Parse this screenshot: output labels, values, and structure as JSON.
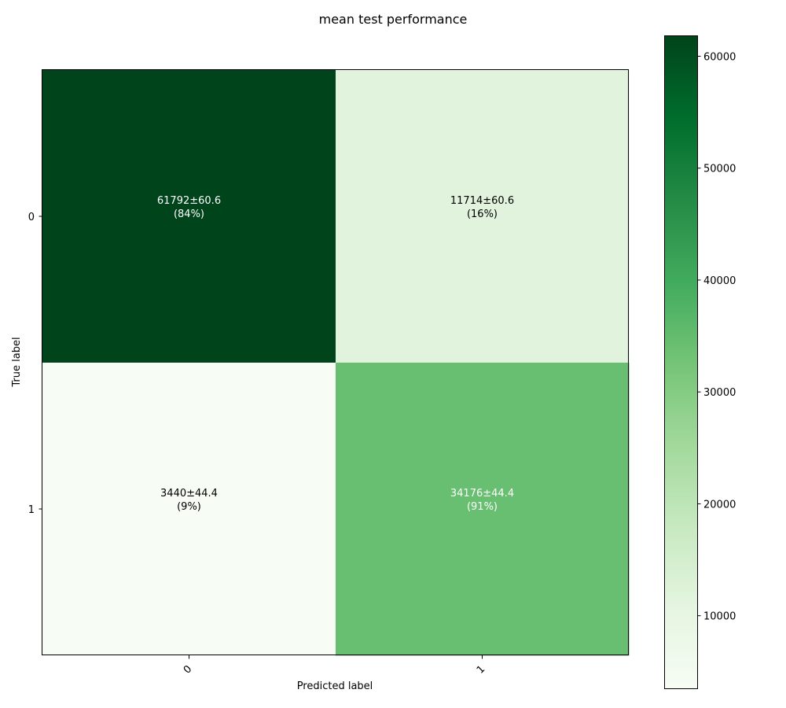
{
  "chart_data": {
    "type": "heatmap",
    "title": "mean test performance",
    "xlabel": "Predicted label",
    "ylabel": "True label",
    "x_categories": [
      "0",
      "1"
    ],
    "y_categories": [
      "0",
      "1"
    ],
    "values": [
      [
        61792,
        11714
      ],
      [
        3440,
        34176
      ]
    ],
    "cell_labels": [
      [
        {
          "line1": "61792±60.6",
          "line2": "(84%)"
        },
        {
          "line1": "11714±60.6",
          "line2": "(16%)"
        }
      ],
      [
        {
          "line1": "3440±44.4",
          "line2": "(9%)"
        },
        {
          "line1": "34176±44.4",
          "line2": "(91%)"
        }
      ]
    ],
    "colormap": "Greens",
    "colorbar": {
      "min": 3440,
      "max": 61792,
      "ticks": [
        10000,
        20000,
        30000,
        40000,
        50000,
        60000
      ],
      "tick_labels": [
        "10000",
        "20000",
        "30000",
        "40000",
        "50000",
        "60000"
      ]
    },
    "grid": false,
    "xtick_rotation_deg": 45
  }
}
